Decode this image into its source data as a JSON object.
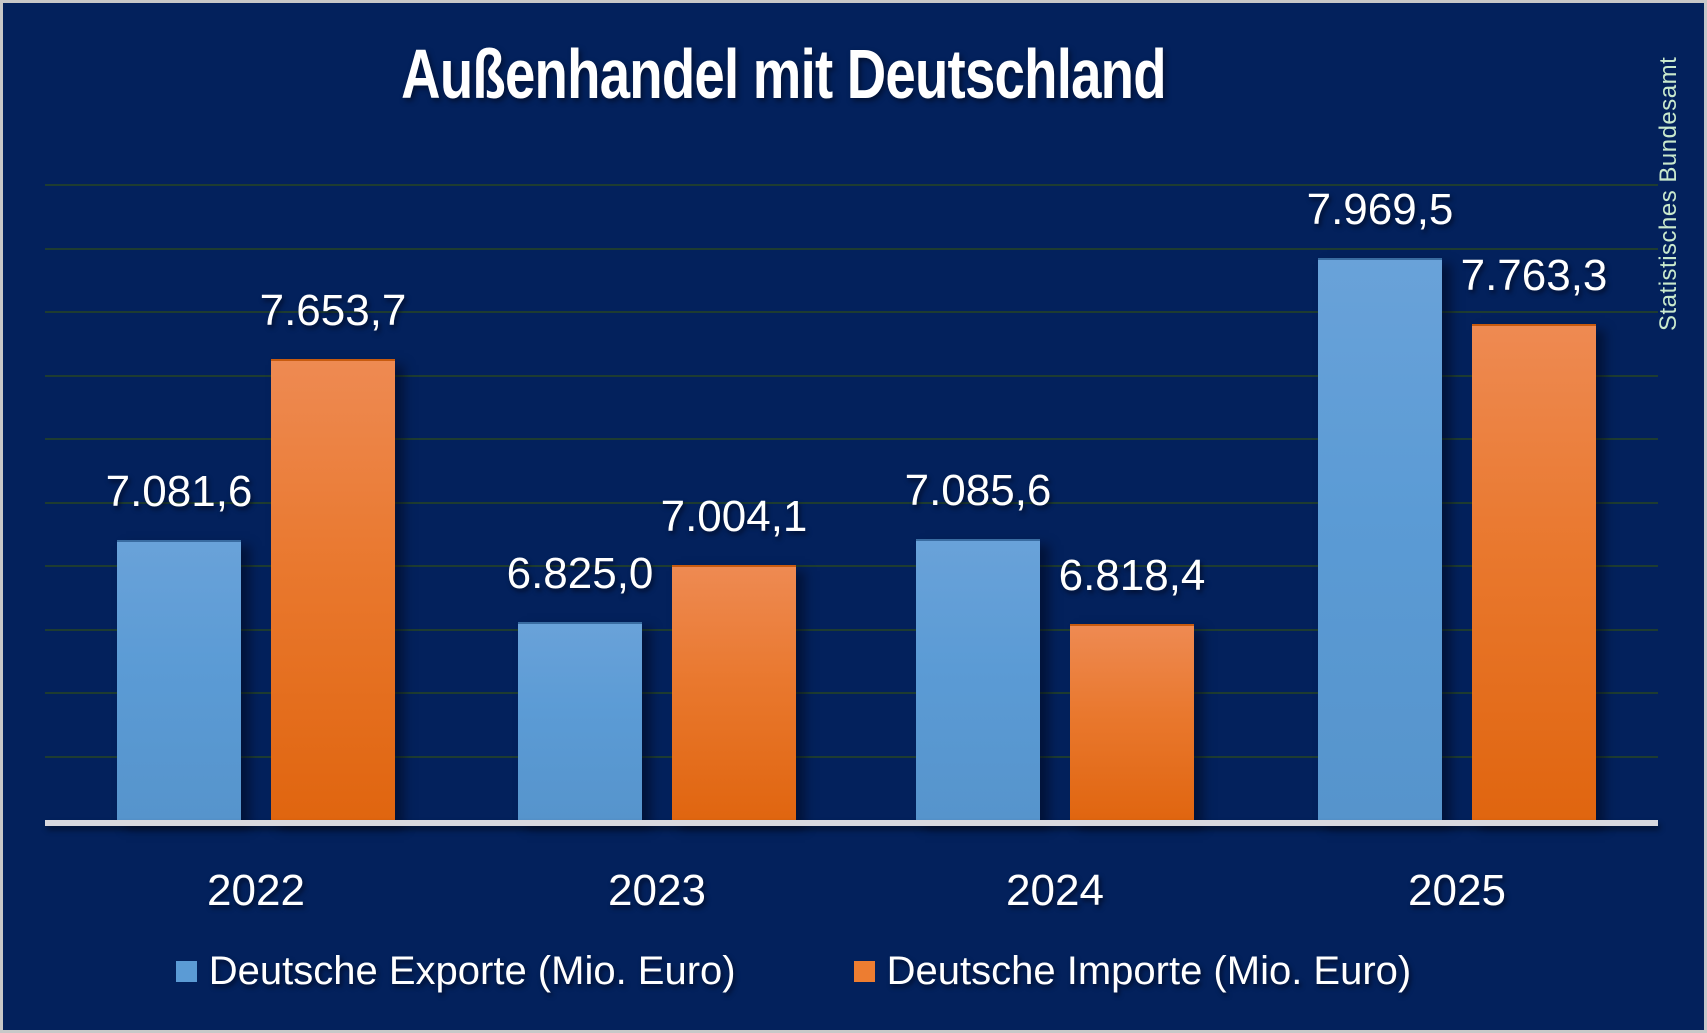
{
  "title": "Außenhandel mit Deutschland",
  "source_label": "Statistisches Bundesamt",
  "colors": {
    "background": "#03215C",
    "gridline": "#1E3C31",
    "axis_line": "#D8D8DE",
    "export_blue": "#5B9BD5",
    "import_orange": "#ED7D31",
    "label_text": "#FFFFFF",
    "source_text": "#C9E9CD"
  },
  "chart_data": {
    "type": "bar",
    "title": "Außenhandel mit Deutschland",
    "categories": [
      "2022",
      "2023",
      "2024",
      "2025"
    ],
    "series": [
      {
        "name": "Deutsche Exporte (Mio. Euro)",
        "color": "#5B9BD5",
        "values": [
          7081.6,
          6825.0,
          7085.6,
          7969.5
        ],
        "labels": [
          "7.081,6",
          "6.825,0",
          "7.085,6",
          "7.969,5"
        ]
      },
      {
        "name": "Deutsche Importe (Mio. Euro)",
        "color": "#ED7D31",
        "values": [
          7653.7,
          7004.1,
          6818.4,
          7763.3
        ],
        "labels": [
          "7.653,7",
          "7.004,1",
          "6.818,4",
          "7.763,3"
        ]
      }
    ],
    "xlabel": "",
    "ylabel": "",
    "ylim": [
      6200,
      8200
    ],
    "gridline_step": 200,
    "grid": true,
    "y_tick_labels_shown": false,
    "data_labels_shown": true,
    "legend_position": "bottom"
  }
}
